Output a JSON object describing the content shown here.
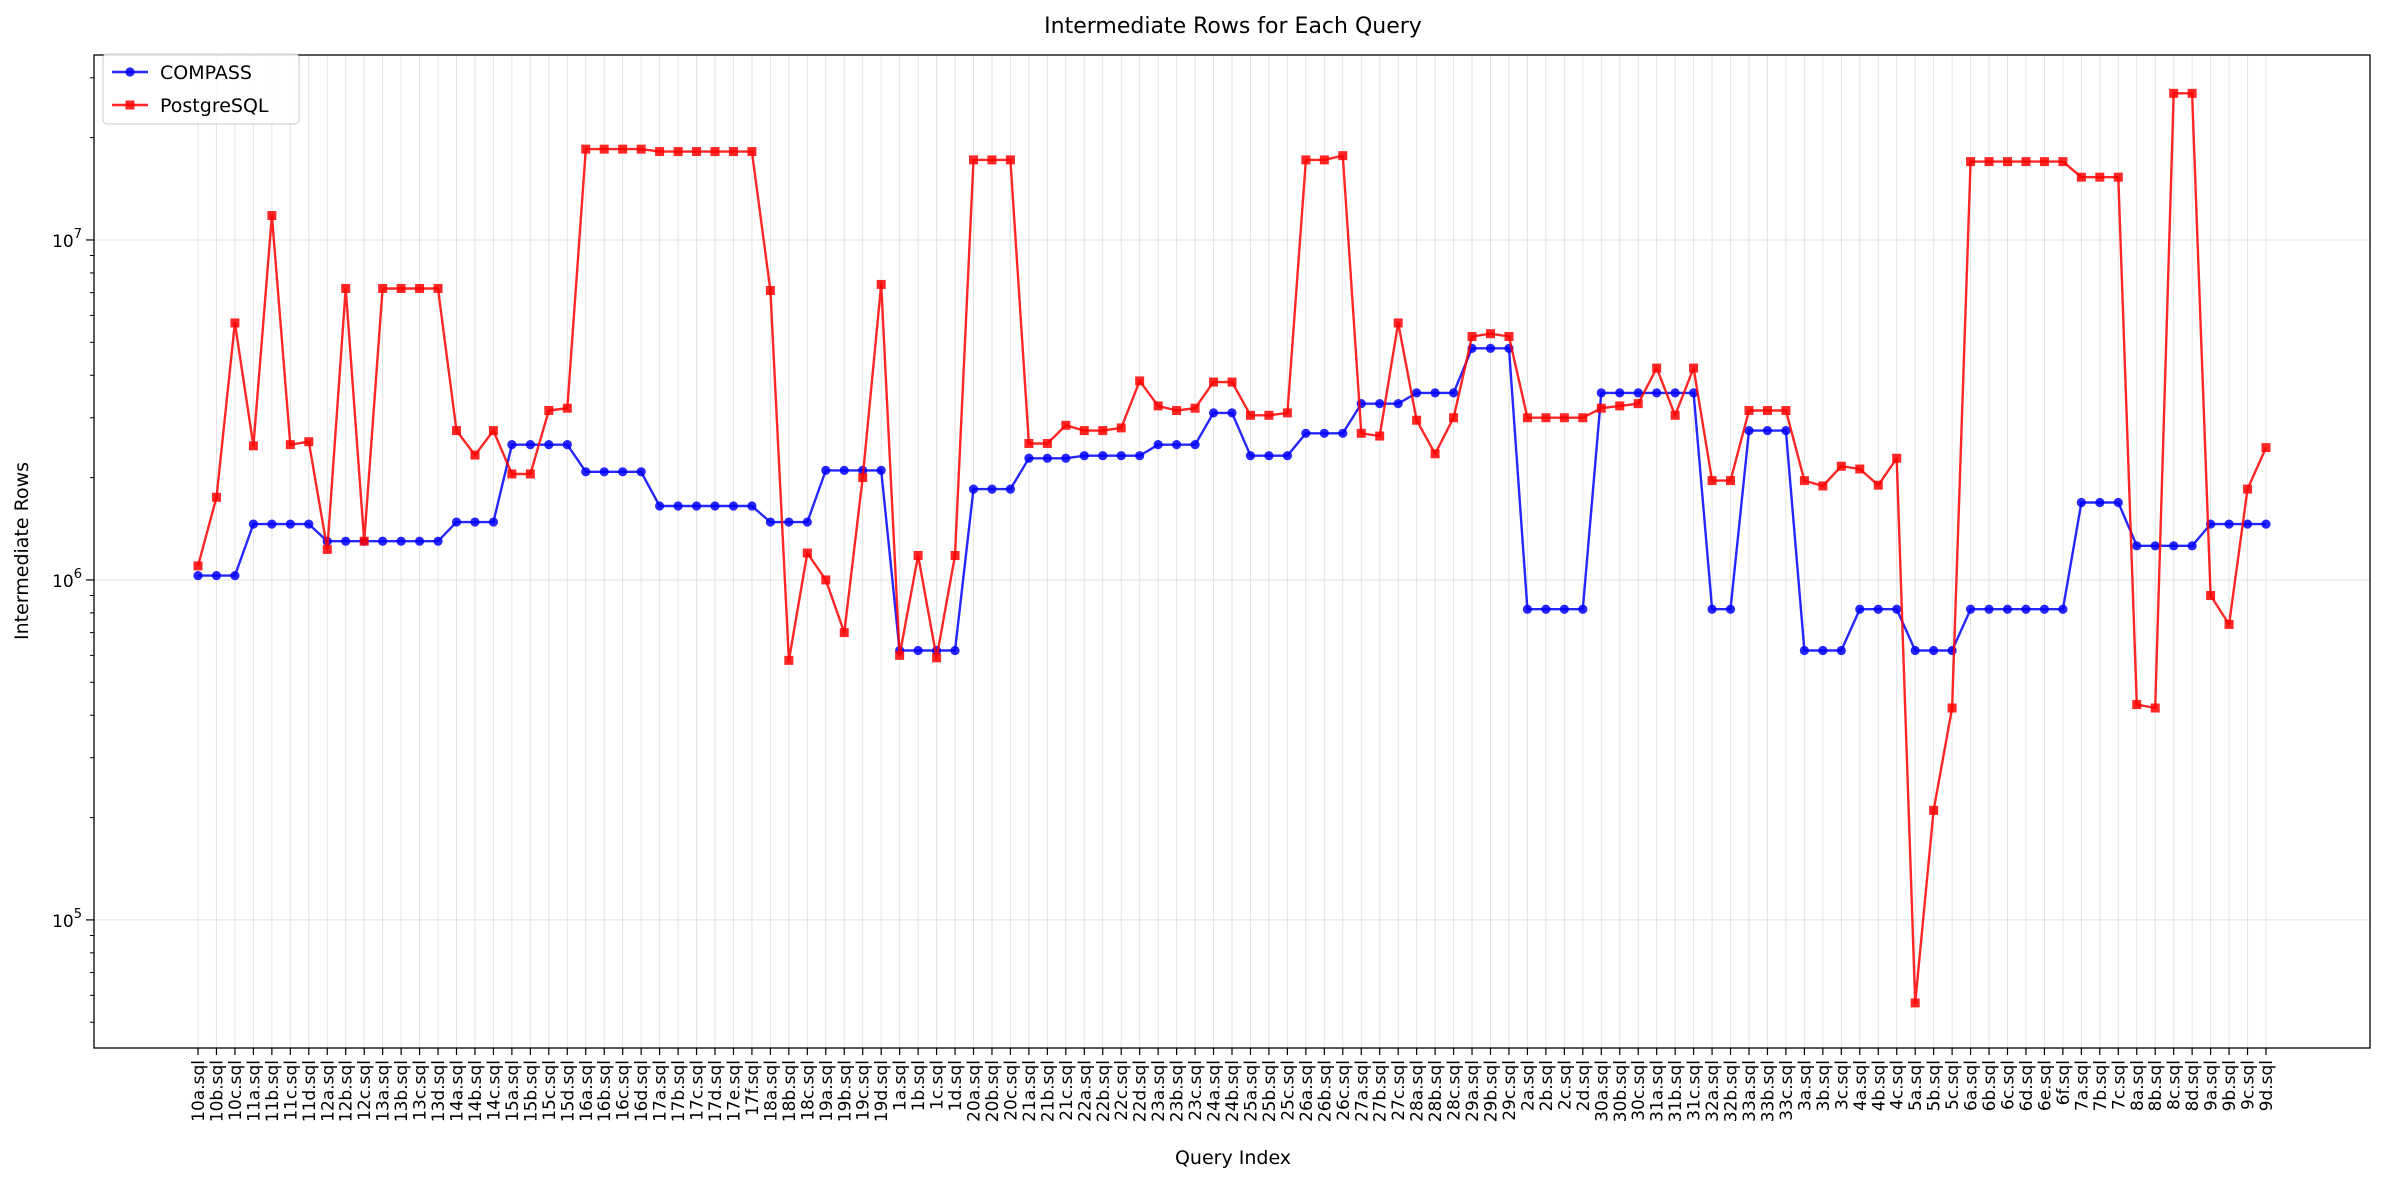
{
  "chart_data": {
    "type": "line",
    "title": "Intermediate Rows for Each Query",
    "xlabel": "Query Index",
    "ylabel": "Intermediate Rows",
    "yscale": "log",
    "ylim": [
      42000,
      35000000
    ],
    "y_ticks": [
      {
        "value": 100000,
        "base": "10",
        "exp": "5"
      },
      {
        "value": 1000000,
        "base": "10",
        "exp": "6"
      },
      {
        "value": 10000000,
        "base": "10",
        "exp": "7"
      }
    ],
    "grid": true,
    "legend_position": "top-left",
    "categories": [
      "10a.sql",
      "10b.sql",
      "10c.sql",
      "11a.sql",
      "11b.sql",
      "11c.sql",
      "11d.sql",
      "12a.sql",
      "12b.sql",
      "12c.sql",
      "13a.sql",
      "13b.sql",
      "13c.sql",
      "13d.sql",
      "14a.sql",
      "14b.sql",
      "14c.sql",
      "15a.sql",
      "15b.sql",
      "15c.sql",
      "15d.sql",
      "16a.sql",
      "16b.sql",
      "16c.sql",
      "16d.sql",
      "17a.sql",
      "17b.sql",
      "17c.sql",
      "17d.sql",
      "17e.sql",
      "17f.sql",
      "18a.sql",
      "18b.sql",
      "18c.sql",
      "19a.sql",
      "19b.sql",
      "19c.sql",
      "19d.sql",
      "1a.sql",
      "1b.sql",
      "1c.sql",
      "1d.sql",
      "20a.sql",
      "20b.sql",
      "20c.sql",
      "21a.sql",
      "21b.sql",
      "21c.sql",
      "22a.sql",
      "22b.sql",
      "22c.sql",
      "22d.sql",
      "23a.sql",
      "23b.sql",
      "23c.sql",
      "24a.sql",
      "24b.sql",
      "25a.sql",
      "25b.sql",
      "25c.sql",
      "26a.sql",
      "26b.sql",
      "26c.sql",
      "27a.sql",
      "27b.sql",
      "27c.sql",
      "28a.sql",
      "28b.sql",
      "28c.sql",
      "29a.sql",
      "29b.sql",
      "29c.sql",
      "2a.sql",
      "2b.sql",
      "2c.sql",
      "2d.sql",
      "30a.sql",
      "30b.sql",
      "30c.sql",
      "31a.sql",
      "31b.sql",
      "31c.sql",
      "32a.sql",
      "32b.sql",
      "33a.sql",
      "33b.sql",
      "33c.sql",
      "3a.sql",
      "3b.sql",
      "3c.sql",
      "4a.sql",
      "4b.sql",
      "4c.sql",
      "5a.sql",
      "5b.sql",
      "5c.sql",
      "6a.sql",
      "6b.sql",
      "6c.sql",
      "6d.sql",
      "6e.sql",
      "6f.sql",
      "7a.sql",
      "7b.sql",
      "7c.sql",
      "8a.sql",
      "8b.sql",
      "8c.sql",
      "8d.sql",
      "9a.sql",
      "9b.sql",
      "9c.sql",
      "9d.sql"
    ],
    "series": [
      {
        "name": "COMPASS",
        "color": "#0000ff",
        "marker": "circle",
        "values": [
          1030000,
          1030000,
          1030000,
          1460000,
          1460000,
          1460000,
          1460000,
          1300000,
          1300000,
          1300000,
          1300000,
          1300000,
          1300000,
          1300000,
          1480000,
          1480000,
          1480000,
          2500000,
          2500000,
          2500000,
          2500000,
          2080000,
          2080000,
          2080000,
          2080000,
          1650000,
          1650000,
          1650000,
          1650000,
          1650000,
          1650000,
          1480000,
          1480000,
          1480000,
          2100000,
          2100000,
          2100000,
          2100000,
          620000,
          620000,
          620000,
          620000,
          1850000,
          1850000,
          1850000,
          2280000,
          2280000,
          2280000,
          2320000,
          2320000,
          2320000,
          2320000,
          2500000,
          2500000,
          2500000,
          3100000,
          3100000,
          2320000,
          2320000,
          2320000,
          2700000,
          2700000,
          2700000,
          3300000,
          3300000,
          3300000,
          3550000,
          3550000,
          3550000,
          4800000,
          4800000,
          4800000,
          820000,
          820000,
          820000,
          820000,
          3550000,
          3550000,
          3550000,
          3550000,
          3550000,
          3550000,
          820000,
          820000,
          2750000,
          2750000,
          2750000,
          620000,
          620000,
          620000,
          820000,
          820000,
          820000,
          620000,
          620000,
          620000,
          820000,
          820000,
          820000,
          820000,
          820000,
          820000,
          1690000,
          1690000,
          1690000,
          1260000,
          1260000,
          1260000,
          1260000,
          1460000,
          1460000,
          1460000,
          1460000
        ]
      },
      {
        "name": "PostgreSQL",
        "color": "#ff0000",
        "marker": "square",
        "values": [
          1100000,
          1750000,
          5700000,
          2480000,
          11800000,
          2500000,
          2550000,
          1230000,
          7200000,
          1300000,
          7200000,
          7200000,
          7200000,
          7200000,
          2750000,
          2330000,
          2750000,
          2050000,
          2050000,
          3150000,
          3200000,
          18500000,
          18500000,
          18500000,
          18500000,
          18200000,
          18200000,
          18200000,
          18200000,
          18200000,
          18200000,
          7100000,
          580000,
          1200000,
          1000000,
          700000,
          2000000,
          7400000,
          600000,
          1180000,
          590000,
          1180000,
          17200000,
          17200000,
          17200000,
          2520000,
          2520000,
          2850000,
          2750000,
          2750000,
          2800000,
          3850000,
          3250000,
          3150000,
          3200000,
          3820000,
          3820000,
          3050000,
          3050000,
          3100000,
          17200000,
          17200000,
          17700000,
          2700000,
          2650000,
          5700000,
          2950000,
          2350000,
          3000000,
          5200000,
          5300000,
          5200000,
          3000000,
          3000000,
          3000000,
          3000000,
          3200000,
          3250000,
          3300000,
          4200000,
          3050000,
          4200000,
          1960000,
          1960000,
          3150000,
          3150000,
          3150000,
          1960000,
          1890000,
          2160000,
          2120000,
          1900000,
          2280000,
          57000,
          210000,
          420000,
          17000000,
          17000000,
          17000000,
          17000000,
          17000000,
          17000000,
          15300000,
          15300000,
          15300000,
          430000,
          420000,
          27000000,
          27000000,
          900000,
          740000,
          1850000,
          2450000
        ]
      }
    ]
  }
}
